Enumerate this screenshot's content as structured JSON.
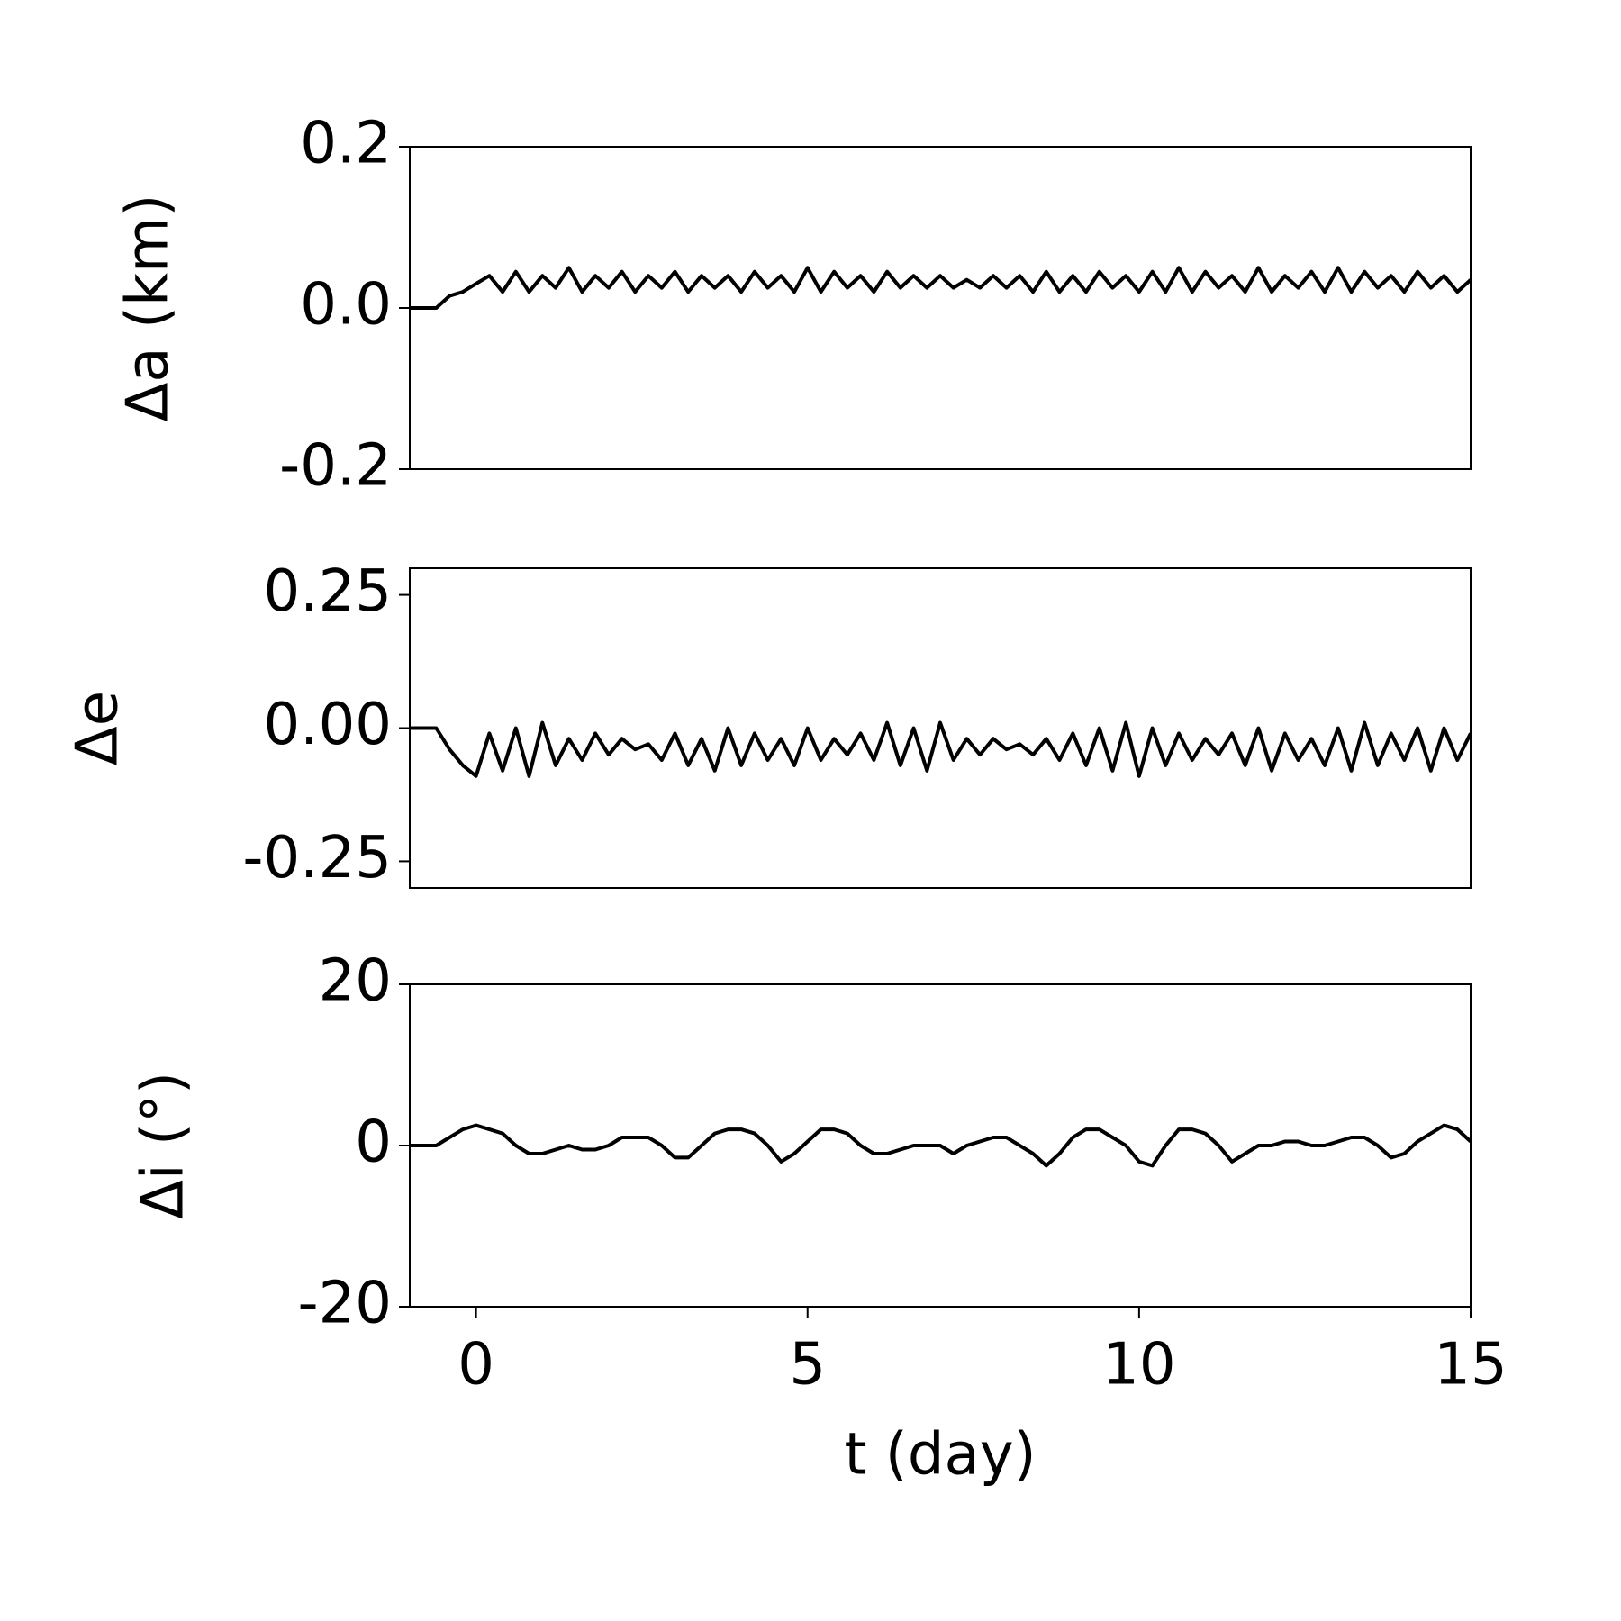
{
  "chart_data": [
    {
      "type": "line",
      "ylabel": "Δa (km)",
      "xlim": [
        -1,
        15
      ],
      "ylim": [
        -0.2,
        0.2
      ],
      "yticks": [
        -0.2,
        {
          "value": 0,
          "label": "0.0"
        },
        0.2
      ],
      "x": [
        -1,
        -0.8,
        -0.6,
        -0.4,
        -0.2,
        0,
        0.2,
        0.4,
        0.6,
        0.8,
        1,
        1.2,
        1.4,
        1.6,
        1.8,
        2,
        2.2,
        2.4,
        2.6,
        2.8,
        3,
        3.2,
        3.4,
        3.6,
        3.8,
        4,
        4.2,
        4.4,
        4.6,
        4.8,
        5,
        5.2,
        5.4,
        5.6,
        5.8,
        6,
        6.2,
        6.4,
        6.6,
        6.8,
        7,
        7.2,
        7.4,
        7.6,
        7.8,
        8,
        8.2,
        8.4,
        8.6,
        8.8,
        9,
        9.2,
        9.4,
        9.6,
        9.8,
        10,
        10.2,
        10.4,
        10.6,
        10.8,
        11,
        11.2,
        11.4,
        11.6,
        11.8,
        12,
        12.2,
        12.4,
        12.6,
        12.8,
        13,
        13.2,
        13.4,
        13.6,
        13.8,
        14,
        14.2,
        14.4,
        14.6,
        14.8,
        15
      ],
      "series": [
        {
          "color": "#000000",
          "values": [
            0,
            0,
            0,
            0.015,
            0.02,
            0.03,
            0.04,
            0.02,
            0.045,
            0.02,
            0.04,
            0.025,
            0.05,
            0.02,
            0.04,
            0.025,
            0.045,
            0.02,
            0.04,
            0.025,
            0.045,
            0.02,
            0.04,
            0.025,
            0.04,
            0.02,
            0.045,
            0.025,
            0.04,
            0.02,
            0.05,
            0.02,
            0.045,
            0.025,
            0.04,
            0.02,
            0.045,
            0.025,
            0.04,
            0.025,
            0.04,
            0.025,
            0.035,
            0.025,
            0.04,
            0.025,
            0.04,
            0.02,
            0.045,
            0.02,
            0.04,
            0.02,
            0.045,
            0.025,
            0.04,
            0.02,
            0.045,
            0.02,
            0.05,
            0.02,
            0.045,
            0.025,
            0.04,
            0.02,
            0.05,
            0.02,
            0.04,
            0.025,
            0.045,
            0.02,
            0.05,
            0.02,
            0.045,
            0.025,
            0.04,
            0.02,
            0.045,
            0.025,
            0.04,
            0.02,
            0.035
          ]
        }
      ]
    },
    {
      "type": "line",
      "ylabel": "Δe",
      "xlim": [
        -1,
        15
      ],
      "ylim": [
        -0.3,
        0.3
      ],
      "yticks": [
        -0.25,
        {
          "value": 0,
          "label": "0.00"
        },
        0.25
      ],
      "x": [
        -1,
        -0.8,
        -0.6,
        -0.4,
        -0.2,
        0,
        0.2,
        0.4,
        0.6,
        0.8,
        1,
        1.2,
        1.4,
        1.6,
        1.8,
        2,
        2.2,
        2.4,
        2.6,
        2.8,
        3,
        3.2,
        3.4,
        3.6,
        3.8,
        4,
        4.2,
        4.4,
        4.6,
        4.8,
        5,
        5.2,
        5.4,
        5.6,
        5.8,
        6,
        6.2,
        6.4,
        6.6,
        6.8,
        7,
        7.2,
        7.4,
        7.6,
        7.8,
        8,
        8.2,
        8.4,
        8.6,
        8.8,
        9,
        9.2,
        9.4,
        9.6,
        9.8,
        10,
        10.2,
        10.4,
        10.6,
        10.8,
        11,
        11.2,
        11.4,
        11.6,
        11.8,
        12,
        12.2,
        12.4,
        12.6,
        12.8,
        13,
        13.2,
        13.4,
        13.6,
        13.8,
        14,
        14.2,
        14.4,
        14.6,
        14.8,
        15
      ],
      "series": [
        {
          "color": "#000000",
          "values": [
            0,
            0,
            0,
            -0.04,
            -0.07,
            -0.09,
            -0.01,
            -0.08,
            0.0,
            -0.09,
            0.01,
            -0.07,
            -0.02,
            -0.06,
            -0.01,
            -0.05,
            -0.02,
            -0.04,
            -0.03,
            -0.06,
            -0.01,
            -0.07,
            -0.02,
            -0.08,
            0.0,
            -0.07,
            -0.01,
            -0.06,
            -0.02,
            -0.07,
            0.0,
            -0.06,
            -0.02,
            -0.05,
            -0.01,
            -0.06,
            0.01,
            -0.07,
            0.0,
            -0.08,
            0.01,
            -0.06,
            -0.02,
            -0.05,
            -0.02,
            -0.04,
            -0.03,
            -0.05,
            -0.02,
            -0.06,
            -0.01,
            -0.07,
            0.0,
            -0.08,
            0.01,
            -0.09,
            0.0,
            -0.07,
            -0.01,
            -0.06,
            -0.02,
            -0.05,
            -0.01,
            -0.07,
            0.0,
            -0.08,
            -0.01,
            -0.06,
            -0.02,
            -0.07,
            0.0,
            -0.08,
            0.01,
            -0.07,
            -0.01,
            -0.06,
            0.0,
            -0.08,
            0.0,
            -0.06,
            -0.01
          ]
        }
      ]
    },
    {
      "type": "line",
      "ylabel": "Δi (°)",
      "xlabel": "t (day)",
      "xlim": [
        -1,
        15
      ],
      "xticks": [
        0,
        5,
        10,
        15
      ],
      "ylim": [
        -20,
        20
      ],
      "yticks": [
        -20,
        0,
        20
      ],
      "x": [
        -1,
        -0.8,
        -0.6,
        -0.4,
        -0.2,
        0,
        0.2,
        0.4,
        0.6,
        0.8,
        1,
        1.2,
        1.4,
        1.6,
        1.8,
        2,
        2.2,
        2.4,
        2.6,
        2.8,
        3,
        3.2,
        3.4,
        3.6,
        3.8,
        4,
        4.2,
        4.4,
        4.6,
        4.8,
        5,
        5.2,
        5.4,
        5.6,
        5.8,
        6,
        6.2,
        6.4,
        6.6,
        6.8,
        7,
        7.2,
        7.4,
        7.6,
        7.8,
        8,
        8.2,
        8.4,
        8.6,
        8.8,
        9,
        9.2,
        9.4,
        9.6,
        9.8,
        10,
        10.2,
        10.4,
        10.6,
        10.8,
        11,
        11.2,
        11.4,
        11.6,
        11.8,
        12,
        12.2,
        12.4,
        12.6,
        12.8,
        13,
        13.2,
        13.4,
        13.6,
        13.8,
        14,
        14.2,
        14.4,
        14.6,
        14.8,
        15
      ],
      "series": [
        {
          "color": "#000000",
          "values": [
            0,
            0,
            0,
            1,
            2,
            2.5,
            2,
            1.5,
            0,
            -1,
            -1,
            -0.5,
            0,
            -0.5,
            -0.5,
            0,
            1,
            1,
            1,
            0,
            -1.5,
            -1.5,
            0,
            1.5,
            2,
            2,
            1.5,
            0,
            -2,
            -1,
            0.5,
            2,
            2,
            1.5,
            0,
            -1,
            -1,
            -0.5,
            0,
            0,
            0,
            -1,
            0,
            0.5,
            1,
            1,
            0,
            -1,
            -2.5,
            -1,
            1,
            2,
            2,
            1,
            0,
            -2,
            -2.5,
            0,
            2,
            2,
            1.5,
            0,
            -2,
            -1,
            0,
            0,
            0.5,
            0.5,
            0,
            0,
            0.5,
            1,
            1,
            0,
            -1.5,
            -1,
            0.5,
            1.5,
            2.5,
            2,
            0.5
          ]
        }
      ]
    }
  ]
}
